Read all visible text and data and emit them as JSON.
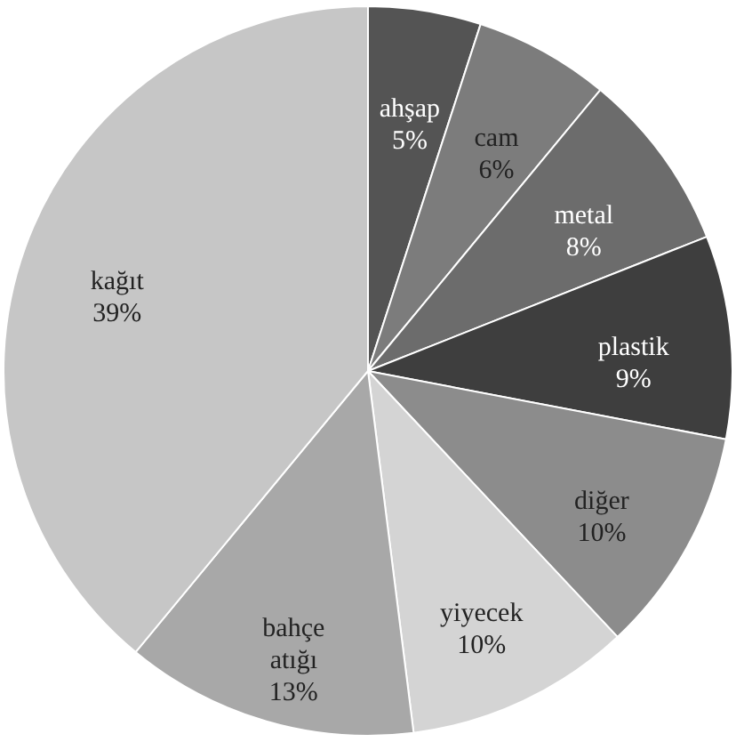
{
  "chart_data": {
    "type": "pie",
    "categories": [
      "ahşap",
      "cam",
      "metal",
      "plastik",
      "diğer",
      "yiyecek",
      "bahçe atığı",
      "kağıt"
    ],
    "values": [
      5,
      6,
      8,
      9,
      10,
      10,
      13,
      39
    ],
    "value_labels": [
      "5%",
      "6%",
      "8%",
      "9%",
      "10%",
      "10%",
      "13%",
      "39%"
    ],
    "colors": [
      "#545454",
      "#7c7c7c",
      "#6c6c6c",
      "#3e3e3e",
      "#8c8c8c",
      "#d4d4d4",
      "#a8a8a8",
      "#c6c6c6"
    ]
  }
}
